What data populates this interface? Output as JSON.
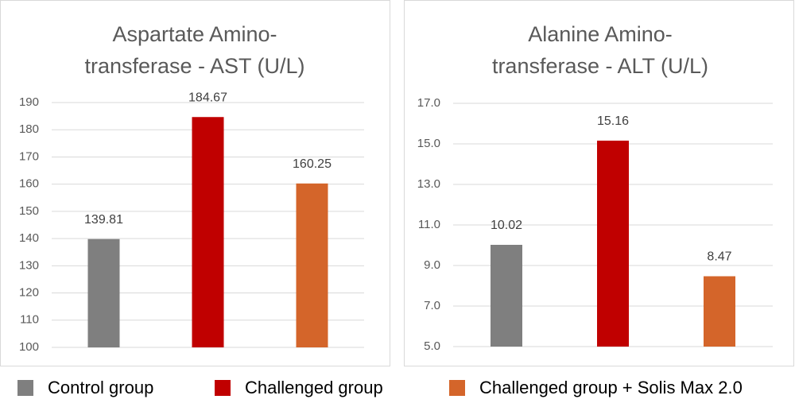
{
  "chart_data": [
    {
      "type": "bar",
      "title": [
        "Aspartate Amino-",
        "transferase - AST (U/L)"
      ],
      "categories": [
        null,
        null,
        null
      ],
      "values": [
        139.81,
        184.67,
        160.25
      ],
      "colors": [
        "#7f7f7f",
        "#c00000",
        "#d4652a"
      ],
      "ylim": [
        100,
        190
      ],
      "yticks": [
        100,
        110,
        120,
        130,
        140,
        150,
        160,
        170,
        180,
        190
      ],
      "grid": true
    },
    {
      "type": "bar",
      "title": [
        "Alanine Amino-",
        "transferase - ALT (U/L)"
      ],
      "categories": [
        null,
        null,
        null
      ],
      "values": [
        10.02,
        15.16,
        8.47
      ],
      "colors": [
        "#7f7f7f",
        "#c00000",
        "#d4652a"
      ],
      "ylim": [
        5,
        17
      ],
      "yticks": [
        {
          "value": 5,
          "label": "5.0"
        },
        {
          "value": 7,
          "label": "7.0"
        },
        {
          "value": 9,
          "label": "9.0"
        },
        {
          "value": 11,
          "label": "11.0"
        },
        {
          "value": 13,
          "label": "13.0"
        },
        {
          "value": 15,
          "label": "15.0"
        },
        {
          "value": 17,
          "label": "17.0"
        }
      ],
      "grid": true
    }
  ],
  "legend": {
    "items": [
      {
        "name": "Control group",
        "color": "#7f7f7f"
      },
      {
        "name": "Challenged group",
        "color": "#c00000"
      },
      {
        "name": "Challenged group + Solis Max 2.0",
        "color": "#d4652a"
      }
    ]
  }
}
